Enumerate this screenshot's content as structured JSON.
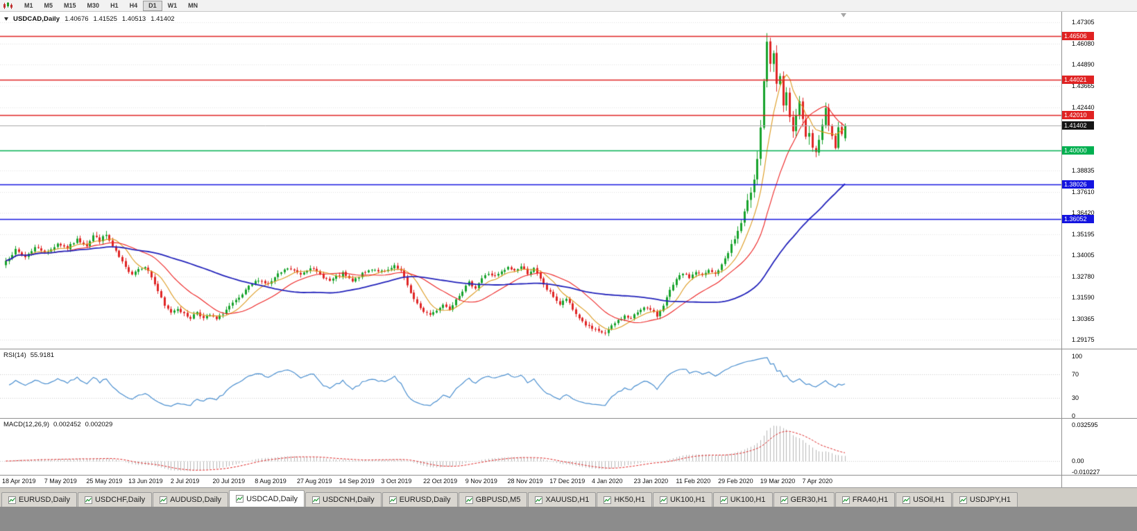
{
  "toolbar": {
    "timeframes": [
      {
        "label": "M1",
        "active": false
      },
      {
        "label": "M5",
        "active": false
      },
      {
        "label": "M15",
        "active": false
      },
      {
        "label": "M30",
        "active": false
      },
      {
        "label": "H1",
        "active": false
      },
      {
        "label": "H4",
        "active": false
      },
      {
        "label": "D1",
        "active": true
      },
      {
        "label": "W1",
        "active": false
      },
      {
        "label": "MN",
        "active": false
      }
    ]
  },
  "chart": {
    "title": {
      "symbol": "USDCAD,Daily",
      "open": "1.40676",
      "high": "1.41525",
      "low": "1.40513",
      "close": "1.41402"
    },
    "axis_ticks": [
      "1.47305",
      "1.46080",
      "1.44890",
      "1.43665",
      "1.42440",
      "1.38835",
      "1.37610",
      "1.36420",
      "1.35195",
      "1.34005",
      "1.32780",
      "1.31590",
      "1.30365",
      "1.29175"
    ],
    "levels": [
      {
        "label": "1.46506",
        "value": 1.46506,
        "color": "#e02222",
        "type": "resistance"
      },
      {
        "label": "1.44021",
        "value": 1.44021,
        "color": "#e02222",
        "type": "resistance"
      },
      {
        "label": "1.42010",
        "value": 1.4201,
        "color": "#e02222",
        "type": "resistance"
      },
      {
        "label": "1.40000",
        "value": 1.4,
        "color": "#00b050",
        "type": "support"
      },
      {
        "label": "1.38026",
        "value": 1.38026,
        "color": "#1414e0",
        "type": "support"
      },
      {
        "label": "1.36052",
        "value": 1.36052,
        "color": "#1414e0",
        "type": "support"
      }
    ],
    "current_price": {
      "label": "1.41402",
      "value": 1.41402
    },
    "date_labels": [
      "18 Apr 2019",
      "7 May 2019",
      "25 May 2019",
      "13 Jun 2019",
      "2 Jul 2019",
      "20 Jul 2019",
      "8 Aug 2019",
      "27 Aug 2019",
      "14 Sep 2019",
      "3 Oct 2019",
      "22 Oct 2019",
      "9 Nov 2019",
      "28 Nov 2019",
      "17 Dec 2019",
      "4 Jan 2020",
      "23 Jan 2020",
      "11 Feb 2020",
      "29 Feb 2020",
      "19 Mar 2020",
      "7 Apr 2020"
    ]
  },
  "indicators": {
    "rsi": {
      "label": "RSI(14)",
      "value": "55.9181",
      "axis": [
        "100",
        "70",
        "30",
        "0"
      ],
      "line_color": "#4a8fd0",
      "level_lines": [
        70,
        30
      ]
    },
    "macd": {
      "label": "MACD(12,26,9)",
      "values": [
        "0.002452",
        "0.002029"
      ],
      "axis": [
        "0.032595",
        "0.00",
        "-0.010227"
      ],
      "histogram_color": "#b6b6b6",
      "signal_color": "#e02525"
    }
  },
  "tabs": [
    {
      "label": "EURUSD,Daily",
      "active": false
    },
    {
      "label": "USDCHF,Daily",
      "active": false
    },
    {
      "label": "AUDUSD,Daily",
      "active": false
    },
    {
      "label": "USDCAD,Daily",
      "active": true
    },
    {
      "label": "USDCNH,Daily",
      "active": false
    },
    {
      "label": "EURUSD,Daily",
      "active": false
    },
    {
      "label": "GBPUSD,M5",
      "active": false
    },
    {
      "label": "XAUUSD,H1",
      "active": false
    },
    {
      "label": "HK50,H1",
      "active": false
    },
    {
      "label": "UK100,H1",
      "active": false
    },
    {
      "label": "UK100,H1",
      "active": false
    },
    {
      "label": "GER30,H1",
      "active": false
    },
    {
      "label": "FRA40,H1",
      "active": false
    },
    {
      "label": "USOil,H1",
      "active": false
    },
    {
      "label": "USDJPY,H1",
      "active": false
    }
  ],
  "chart_data": {
    "type": "candlestick",
    "symbol": "USDCAD",
    "timeframe": "Daily",
    "num_candles": 260,
    "candles_per_date_label": 13,
    "render_seed": 7,
    "last_candle": {
      "open": 1.40676,
      "high": 1.41525,
      "low": 1.40513,
      "close": 1.41402
    },
    "peak_high": 1.4668,
    "y_axis_range": [
      1.2866,
      1.479
    ],
    "horizontal_levels": [
      1.46506,
      1.44021,
      1.4201,
      1.4,
      1.38026,
      1.36052
    ],
    "candle_up_color": "#17a32c",
    "candle_down_color": "#e02525",
    "moving_averages": [
      {
        "period": 8,
        "color": "#dd9a1e"
      },
      {
        "period": 20,
        "color": "#ee2222"
      },
      {
        "period": 55,
        "color": "#2323bb"
      }
    ],
    "rsi_period": 14,
    "macd_params": {
      "fast": 12,
      "slow": 26,
      "signal": 9
    },
    "price_anchors": [
      [
        0,
        1.3368
      ],
      [
        3,
        1.3428
      ],
      [
        6,
        1.339
      ],
      [
        9,
        1.3445
      ],
      [
        13,
        1.3415
      ],
      [
        16,
        1.3468
      ],
      [
        19,
        1.344
      ],
      [
        22,
        1.3488
      ],
      [
        25,
        1.3458
      ],
      [
        27,
        1.3512
      ],
      [
        29,
        1.3485
      ],
      [
        31,
        1.3515
      ],
      [
        33,
        1.3448
      ],
      [
        35,
        1.3388
      ],
      [
        37,
        1.3328
      ],
      [
        39,
        1.3295
      ],
      [
        41,
        1.3322
      ],
      [
        43,
        1.3338
      ],
      [
        45,
        1.3275
      ],
      [
        47,
        1.3195
      ],
      [
        49,
        1.3108
      ],
      [
        51,
        1.3075
      ],
      [
        53,
        1.3098
      ],
      [
        55,
        1.3062
      ],
      [
        57,
        1.3042
      ],
      [
        59,
        1.3078
      ],
      [
        61,
        1.3038
      ],
      [
        63,
        1.3058
      ],
      [
        65,
        1.3032
      ],
      [
        67,
        1.3068
      ],
      [
        69,
        1.3108
      ],
      [
        72,
        1.3152
      ],
      [
        75,
        1.3218
      ],
      [
        78,
        1.3262
      ],
      [
        81,
        1.3232
      ],
      [
        84,
        1.3288
      ],
      [
        87,
        1.3325
      ],
      [
        91,
        1.3292
      ],
      [
        94,
        1.3332
      ],
      [
        97,
        1.3288
      ],
      [
        100,
        1.3252
      ],
      [
        104,
        1.3295
      ],
      [
        107,
        1.3248
      ],
      [
        110,
        1.3292
      ],
      [
        113,
        1.3322
      ],
      [
        117,
        1.3302
      ],
      [
        120,
        1.3335
      ],
      [
        122,
        1.3308
      ],
      [
        124,
        1.3228
      ],
      [
        126,
        1.3148
      ],
      [
        128,
        1.3092
      ],
      [
        131,
        1.306
      ],
      [
        133,
        1.3088
      ],
      [
        135,
        1.3118
      ],
      [
        137,
        1.3092
      ],
      [
        139,
        1.3152
      ],
      [
        141,
        1.3198
      ],
      [
        143,
        1.3242
      ],
      [
        145,
        1.3215
      ],
      [
        147,
        1.3268
      ],
      [
        149,
        1.3295
      ],
      [
        151,
        1.3278
      ],
      [
        153,
        1.3302
      ],
      [
        155,
        1.3328
      ],
      [
        157,
        1.3312
      ],
      [
        159,
        1.3335
      ],
      [
        161,
        1.3298
      ],
      [
        163,
        1.3322
      ],
      [
        165,
        1.3262
      ],
      [
        167,
        1.3205
      ],
      [
        169,
        1.3165
      ],
      [
        171,
        1.3118
      ],
      [
        173,
        1.3152
      ],
      [
        175,
        1.3088
      ],
      [
        177,
        1.3042
      ],
      [
        179,
        1.3002
      ],
      [
        181,
        1.2978
      ],
      [
        183,
        1.2962
      ],
      [
        185,
        1.2955
      ],
      [
        187,
        1.2992
      ],
      [
        189,
        1.3028
      ],
      [
        191,
        1.3052
      ],
      [
        193,
        1.3038
      ],
      [
        195,
        1.3075
      ],
      [
        197,
        1.3108
      ],
      [
        199,
        1.3085
      ],
      [
        201,
        1.3052
      ],
      [
        203,
        1.3118
      ],
      [
        205,
        1.3195
      ],
      [
        207,
        1.3258
      ],
      [
        209,
        1.3298
      ],
      [
        211,
        1.3272
      ],
      [
        213,
        1.3305
      ],
      [
        215,
        1.3282
      ],
      [
        217,
        1.3312
      ],
      [
        219,
        1.3292
      ],
      [
        221,
        1.3342
      ],
      [
        223,
        1.3422
      ],
      [
        225,
        1.3492
      ],
      [
        227,
        1.3582
      ],
      [
        229,
        1.3695
      ],
      [
        231,
        1.3848
      ],
      [
        232,
        1.3958
      ],
      [
        233,
        1.4128
      ],
      [
        234,
        1.4398
      ],
      [
        235,
        1.4602
      ],
      [
        236,
        1.4478
      ],
      [
        237,
        1.4552
      ],
      [
        238,
        1.4362
      ],
      [
        239,
        1.4432
      ],
      [
        240,
        1.4255
      ],
      [
        241,
        1.4312
      ],
      [
        242,
        1.4182
      ],
      [
        243,
        1.4095
      ],
      [
        244,
        1.4205
      ],
      [
        245,
        1.4262
      ],
      [
        246,
        1.4158
      ],
      [
        247,
        1.4062
      ],
      [
        248,
        1.4118
      ],
      [
        249,
        1.4028
      ],
      [
        250,
        1.3978
      ],
      [
        251,
        1.4075
      ],
      [
        252,
        1.4162
      ],
      [
        253,
        1.4228
      ],
      [
        254,
        1.4145
      ],
      [
        255,
        1.4078
      ],
      [
        256,
        1.4018
      ],
      [
        257,
        1.4122
      ],
      [
        258,
        1.4085
      ],
      [
        259,
        1.41402
      ]
    ]
  }
}
